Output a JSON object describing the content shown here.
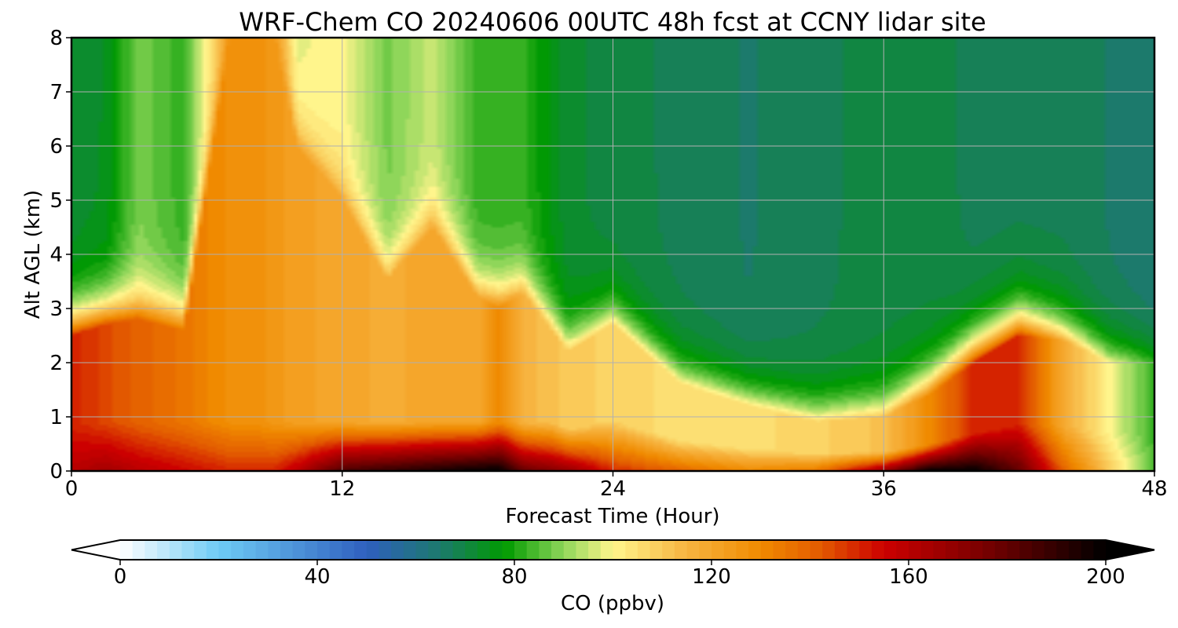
{
  "chart_data": {
    "type": "heatmap",
    "title": "WRF-Chem CO  20240606 00UTC 48h fcst at CCNY lidar site",
    "xlabel": "Forecast Time (Hour)",
    "ylabel": "Alt AGL (km)",
    "xlim": [
      0,
      48
    ],
    "ylim": [
      0,
      8
    ],
    "xticks": [
      0,
      12,
      24,
      36,
      48
    ],
    "yticks": [
      0,
      1,
      2,
      3,
      4,
      5,
      6,
      7,
      8
    ],
    "grid": true,
    "colorbar": {
      "label": "CO  (ppbv)",
      "range": [
        0,
        200
      ],
      "ticks": [
        0,
        40,
        80,
        120,
        160,
        200
      ],
      "extend": "both",
      "orientation": "horizontal",
      "stops": [
        {
          "v": 0,
          "c": "#ffffff"
        },
        {
          "v": 20,
          "c": "#6ecbf5"
        },
        {
          "v": 50,
          "c": "#2f5fbf"
        },
        {
          "v": 65,
          "c": "#1c7a6c"
        },
        {
          "v": 78,
          "c": "#009a00"
        },
        {
          "v": 90,
          "c": "#8fd65a"
        },
        {
          "v": 100,
          "c": "#fff58c"
        },
        {
          "v": 115,
          "c": "#f7b440"
        },
        {
          "v": 130,
          "c": "#f08a00"
        },
        {
          "v": 142,
          "c": "#e35b00"
        },
        {
          "v": 155,
          "c": "#cc0000"
        },
        {
          "v": 175,
          "c": "#7a0000"
        },
        {
          "v": 200,
          "c": "#000000"
        }
      ]
    },
    "profiles": [
      {
        "t": 0,
        "top": 72,
        "pbl": 150,
        "pblTop": 2.5,
        "base": 160
      },
      {
        "t": 1.5,
        "top": 74,
        "pbl": 145,
        "pblTop": 2.7,
        "base": 165
      },
      {
        "t": 3,
        "top": 88,
        "pbl": 140,
        "pblTop": 2.8,
        "base": 160
      },
      {
        "t": 5,
        "top": 82,
        "pbl": 135,
        "pblTop": 2.6,
        "base": 155
      },
      {
        "t": 7,
        "top": 120,
        "pbl": 128,
        "pblTop": 8.0,
        "base": 150
      },
      {
        "t": 8,
        "top": 128,
        "pbl": 128,
        "pblTop": 8.0,
        "base": 150
      },
      {
        "t": 9,
        "top": 122,
        "pbl": 125,
        "pblTop": 8.0,
        "base": 150
      },
      {
        "t": 10,
        "top": 98,
        "pbl": 122,
        "pblTop": 6.0,
        "base": 160
      },
      {
        "t": 12,
        "top": 100,
        "pbl": 120,
        "pblTop": 5.0,
        "base": 185
      },
      {
        "t": 14,
        "top": 88,
        "pbl": 118,
        "pblTop": 3.5,
        "base": 190
      },
      {
        "t": 16,
        "top": 95,
        "pbl": 120,
        "pblTop": 4.5,
        "base": 195
      },
      {
        "t": 18,
        "top": 82,
        "pbl": 120,
        "pblTop": 3.2,
        "base": 200
      },
      {
        "t": 19,
        "top": 82,
        "pbl": 130,
        "pblTop": 3.0,
        "base": 200
      },
      {
        "t": 20,
        "top": 82,
        "pbl": 115,
        "pblTop": 3.3,
        "base": 180
      },
      {
        "t": 22,
        "top": 72,
        "pbl": 110,
        "pblTop": 2.2,
        "base": 170
      },
      {
        "t": 24,
        "top": 70,
        "pbl": 108,
        "pblTop": 2.7,
        "base": 150
      },
      {
        "t": 27,
        "top": 68,
        "pbl": 105,
        "pblTop": 1.6,
        "base": 140
      },
      {
        "t": 30,
        "top": 66,
        "pbl": 105,
        "pblTop": 1.2,
        "base": 130
      },
      {
        "t": 33,
        "top": 68,
        "pbl": 108,
        "pblTop": 0.9,
        "base": 135
      },
      {
        "t": 36,
        "top": 70,
        "pbl": 112,
        "pblTop": 1.0,
        "base": 170
      },
      {
        "t": 38,
        "top": 70,
        "pbl": 130,
        "pblTop": 1.4,
        "base": 200
      },
      {
        "t": 40,
        "top": 68,
        "pbl": 150,
        "pblTop": 2.0,
        "base": 200
      },
      {
        "t": 42,
        "top": 68,
        "pbl": 150,
        "pblTop": 2.5,
        "base": 180
      },
      {
        "t": 44,
        "top": 68,
        "pbl": 118,
        "pblTop": 2.4,
        "base": 140
      },
      {
        "t": 46,
        "top": 66,
        "pbl": 100,
        "pblTop": 2.0,
        "base": 110
      },
      {
        "t": 48,
        "top": 64,
        "pbl": 82,
        "pblTop": 2.0,
        "base": 85
      }
    ]
  }
}
